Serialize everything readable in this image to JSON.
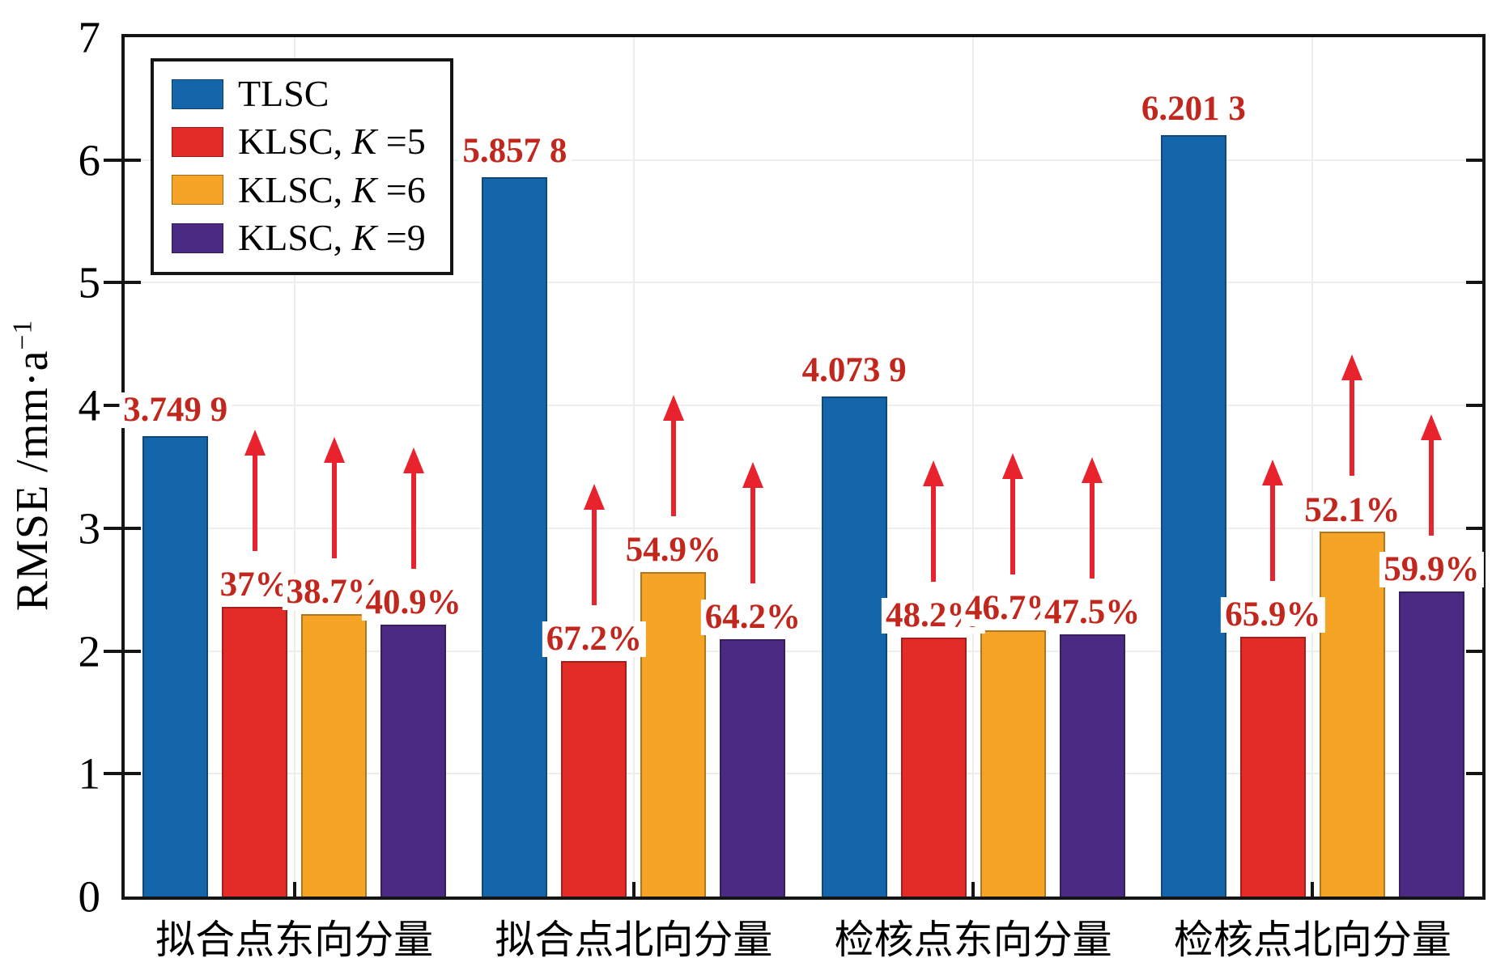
{
  "chart_data": {
    "type": "bar",
    "title": "",
    "ylabel_base": "RMSE /mm·a",
    "ylabel_exp": "−1",
    "ylim": [
      0,
      7
    ],
    "yticks": [
      0,
      1,
      2,
      3,
      4,
      5,
      6,
      7
    ],
    "grid": true,
    "legend_position": "top-left",
    "categories": [
      "拟合点东向分量",
      "拟合点北向分量",
      "检核点东向分量",
      "检核点北向分量"
    ],
    "series": [
      {
        "name": "TLSC",
        "label_parts": [
          "TLSC",
          "",
          ""
        ],
        "color": "#1565ab",
        "values": [
          3.7499,
          5.8578,
          4.0739,
          6.2013
        ],
        "bar_labels": [
          "3.749 9",
          "5.857 8",
          "4.073 9",
          "6.201 3"
        ],
        "arrows": false
      },
      {
        "name": "KLSC, K=5",
        "label_parts": [
          "KLSC, ",
          "K",
          " =5"
        ],
        "color": "#e32b27",
        "values": [
          2.3624,
          1.9214,
          2.1103,
          2.1146
        ],
        "bar_labels": [
          "37%",
          "67.2%",
          "48.2%",
          "65.9%"
        ],
        "arrows": true
      },
      {
        "name": "KLSC, K=6",
        "label_parts": [
          "KLSC, ",
          "K",
          " =6"
        ],
        "color": "#f6a426",
        "values": [
          2.2987,
          2.6419,
          2.1714,
          2.9704
        ],
        "bar_labels": [
          "38.7%",
          "54.9%",
          "46.7%",
          "52.1%"
        ],
        "arrows": true
      },
      {
        "name": "KLSC, K=9",
        "label_parts": [
          "KLSC, ",
          "K",
          " =9"
        ],
        "color": "#4b2a84",
        "values": [
          2.2162,
          2.0971,
          2.1388,
          2.4867
        ],
        "bar_labels": [
          "40.9%",
          "64.2%",
          "47.5%",
          "59.9%"
        ],
        "arrows": true
      }
    ],
    "annotation_color": "#c2271e",
    "arrow_color": "#e8232e"
  }
}
